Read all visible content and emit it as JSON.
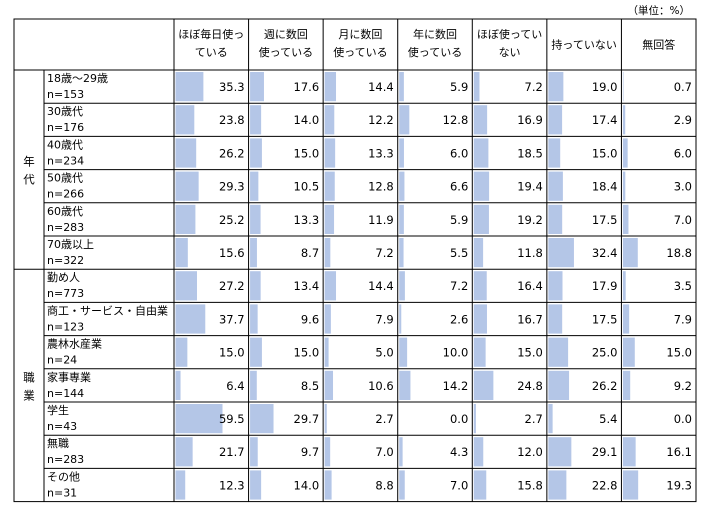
{
  "unit_note": "（単位：%）",
  "chart_data": {
    "type": "table",
    "columns": [
      "ほぼ毎日使っている",
      "週に数回使っている",
      "月に数回使っている",
      "年に数回使っている",
      "ほぼ使っていない",
      "持っていない",
      "無回答"
    ],
    "column_lines": [
      [
        "ほぼ毎日使っ",
        "ている"
      ],
      [
        "週に数回",
        "使っている"
      ],
      [
        "月に数回",
        "使っている"
      ],
      [
        "年に数回",
        "使っている"
      ],
      [
        "ほぼ使ってい",
        "ない"
      ],
      [
        "持っていない"
      ],
      [
        "無回答"
      ]
    ],
    "groups": [
      {
        "name": "年代",
        "name_chars": [
          "年",
          "代"
        ],
        "rows": [
          {
            "label": "18歳～29歳",
            "n": "n=153",
            "values": [
              35.3,
              17.6,
              14.4,
              5.9,
              7.2,
              19.0,
              0.7
            ]
          },
          {
            "label": "30歳代",
            "n": "n=176",
            "values": [
              23.8,
              14.0,
              12.2,
              12.8,
              16.9,
              17.4,
              2.9
            ]
          },
          {
            "label": "40歳代",
            "n": "n=234",
            "values": [
              26.2,
              15.0,
              13.3,
              6.0,
              18.5,
              15.0,
              6.0
            ]
          },
          {
            "label": "50歳代",
            "n": "n=266",
            "values": [
              29.3,
              10.5,
              12.8,
              6.6,
              19.4,
              18.4,
              3.0
            ]
          },
          {
            "label": "60歳代",
            "n": "n=283",
            "values": [
              25.2,
              13.3,
              11.9,
              5.9,
              19.2,
              17.5,
              7.0
            ]
          },
          {
            "label": "70歳以上",
            "n": "n=322",
            "values": [
              15.6,
              8.7,
              7.2,
              5.5,
              11.8,
              32.4,
              18.8
            ]
          }
        ]
      },
      {
        "name": "職業",
        "name_chars": [
          "職",
          "業"
        ],
        "rows": [
          {
            "label": "勤め人",
            "n": "n=773",
            "values": [
              27.2,
              13.4,
              14.4,
              7.2,
              16.4,
              17.9,
              3.5
            ]
          },
          {
            "label": "商工・サービス・自由業",
            "n": "n=123",
            "values": [
              37.7,
              9.6,
              7.9,
              2.6,
              16.7,
              17.5,
              7.9
            ]
          },
          {
            "label": "農林水産業",
            "n": "n=24",
            "values": [
              15.0,
              15.0,
              5.0,
              10.0,
              15.0,
              25.0,
              15.0
            ]
          },
          {
            "label": "家事専業",
            "n": "n=144",
            "values": [
              6.4,
              8.5,
              10.6,
              14.2,
              24.8,
              26.2,
              9.2
            ]
          },
          {
            "label": "学生",
            "n": "n=43",
            "values": [
              59.5,
              29.7,
              2.7,
              0.0,
              2.7,
              5.4,
              0.0
            ]
          },
          {
            "label": "無職",
            "n": "n=283",
            "values": [
              21.7,
              9.7,
              7.0,
              4.3,
              12.0,
              29.1,
              16.1
            ]
          },
          {
            "label": "その他",
            "n": "n=31",
            "values": [
              12.3,
              14.0,
              8.8,
              7.0,
              15.8,
              22.8,
              19.3
            ]
          }
        ]
      }
    ],
    "bar_color": "#b4c6e7"
  }
}
